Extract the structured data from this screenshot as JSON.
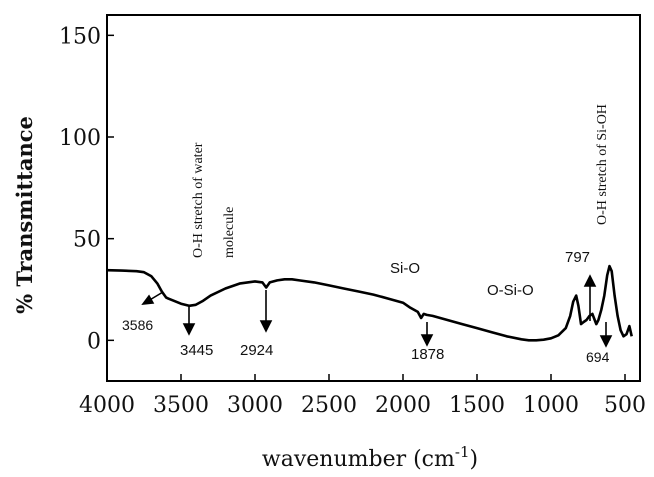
{
  "chart_data": {
    "type": "line",
    "xlabel": "wavenumber (cm",
    "xlabel_sup": "-1",
    "xlabel_close": ")",
    "ylabel": "% Transmittance",
    "xlim": [
      4000,
      450
    ],
    "ylim": [
      -20,
      160
    ],
    "x_reversed": true,
    "x_ticks": [
      4000,
      3500,
      3000,
      2500,
      2000,
      1500,
      1000,
      500
    ],
    "y_ticks": [
      0,
      50,
      100,
      150
    ],
    "grid": false,
    "series": [
      {
        "color": "#000000",
        "points": [
          [
            4000,
            34.5
          ],
          [
            3900,
            34.3
          ],
          [
            3800,
            34
          ],
          [
            3750,
            33.5
          ],
          [
            3700,
            31.5
          ],
          [
            3660,
            28
          ],
          [
            3630,
            24
          ],
          [
            3600,
            21
          ],
          [
            3586,
            20.5
          ],
          [
            3550,
            19.5
          ],
          [
            3500,
            18
          ],
          [
            3445,
            17
          ],
          [
            3400,
            17.5
          ],
          [
            3350,
            19.5
          ],
          [
            3300,
            22
          ],
          [
            3200,
            25.5
          ],
          [
            3100,
            28
          ],
          [
            3000,
            29
          ],
          [
            2950,
            28.5
          ],
          [
            2924,
            26
          ],
          [
            2900,
            28.5
          ],
          [
            2850,
            29.5
          ],
          [
            2800,
            30
          ],
          [
            2750,
            30
          ],
          [
            2700,
            29.5
          ],
          [
            2600,
            28.5
          ],
          [
            2500,
            27
          ],
          [
            2400,
            25.5
          ],
          [
            2300,
            24
          ],
          [
            2200,
            22.5
          ],
          [
            2100,
            20.5
          ],
          [
            2000,
            18.5
          ],
          [
            1950,
            16
          ],
          [
            1900,
            14
          ],
          [
            1878,
            11
          ],
          [
            1860,
            13
          ],
          [
            1840,
            12.5
          ],
          [
            1800,
            12
          ],
          [
            1700,
            10
          ],
          [
            1600,
            8
          ],
          [
            1500,
            6
          ],
          [
            1400,
            4
          ],
          [
            1300,
            2
          ],
          [
            1200,
            0.5
          ],
          [
            1150,
            0
          ],
          [
            1100,
            0
          ],
          [
            1050,
            0.3
          ],
          [
            1000,
            1
          ],
          [
            950,
            2.5
          ],
          [
            900,
            6
          ],
          [
            870,
            12
          ],
          [
            850,
            19
          ],
          [
            830,
            22
          ],
          [
            815,
            17
          ],
          [
            797,
            8
          ],
          [
            780,
            9
          ],
          [
            760,
            10
          ],
          [
            740,
            12
          ],
          [
            720,
            13
          ],
          [
            705,
            10
          ],
          [
            694,
            8
          ],
          [
            680,
            10
          ],
          [
            660,
            15
          ],
          [
            640,
            22
          ],
          [
            620,
            32
          ],
          [
            605,
            36.5
          ],
          [
            590,
            34
          ],
          [
            570,
            22
          ],
          [
            550,
            12
          ],
          [
            530,
            5
          ],
          [
            510,
            2
          ],
          [
            490,
            3
          ],
          [
            470,
            7
          ],
          [
            455,
            2
          ]
        ]
      }
    ],
    "annotations": [
      {
        "text": "3586",
        "x": 3586,
        "y": 20.5,
        "style": "num"
      },
      {
        "text": "3445",
        "x": 3445,
        "y": 17,
        "style": "num"
      },
      {
        "text": "2924",
        "x": 2924,
        "y": 26,
        "style": "num"
      },
      {
        "text": "1878",
        "x": 1878,
        "y": 11,
        "style": "num"
      },
      {
        "text": "797",
        "x": 797,
        "y": 8,
        "style": "big"
      },
      {
        "text": "694",
        "x": 694,
        "y": 8,
        "style": "num-small"
      },
      {
        "text": "Si-O",
        "style": "label"
      },
      {
        "text": "O-Si-O",
        "style": "label"
      },
      {
        "text": "O-H stretch of water",
        "style": "vertical"
      },
      {
        "text": "molecule",
        "style": "vertical"
      },
      {
        "text": "O-H stretch of Si-OH",
        "style": "vertical"
      }
    ]
  }
}
